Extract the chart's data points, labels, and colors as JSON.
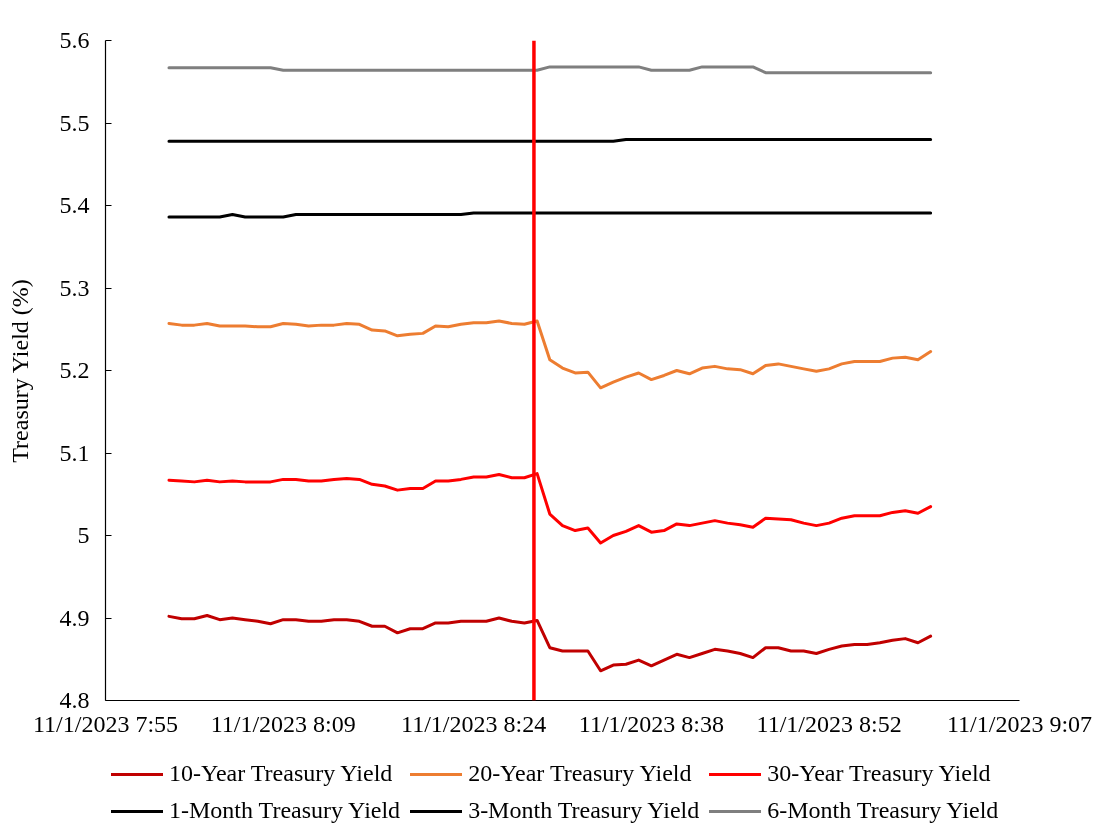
{
  "chart_data": {
    "type": "line",
    "ylabel": "Treasury Yield (%)",
    "x": [
      "2023-11-01T08:00",
      "2023-11-01T08:01",
      "2023-11-01T08:02",
      "2023-11-01T08:03",
      "2023-11-01T08:04",
      "2023-11-01T08:05",
      "2023-11-01T08:06",
      "2023-11-01T08:07",
      "2023-11-01T08:08",
      "2023-11-01T08:09",
      "2023-11-01T08:10",
      "2023-11-01T08:11",
      "2023-11-01T08:12",
      "2023-11-01T08:13",
      "2023-11-01T08:14",
      "2023-11-01T08:15",
      "2023-11-01T08:16",
      "2023-11-01T08:17",
      "2023-11-01T08:18",
      "2023-11-01T08:19",
      "2023-11-01T08:20",
      "2023-11-01T08:21",
      "2023-11-01T08:22",
      "2023-11-01T08:23",
      "2023-11-01T08:24",
      "2023-11-01T08:25",
      "2023-11-01T08:26",
      "2023-11-01T08:27",
      "2023-11-01T08:28",
      "2023-11-01T08:29",
      "2023-11-01T08:30",
      "2023-11-01T08:31",
      "2023-11-01T08:32",
      "2023-11-01T08:33",
      "2023-11-01T08:34",
      "2023-11-01T08:35",
      "2023-11-01T08:36",
      "2023-11-01T08:37",
      "2023-11-01T08:38",
      "2023-11-01T08:39",
      "2023-11-01T08:40",
      "2023-11-01T08:41",
      "2023-11-01T08:42",
      "2023-11-01T08:43",
      "2023-11-01T08:44",
      "2023-11-01T08:45",
      "2023-11-01T08:46",
      "2023-11-01T08:47",
      "2023-11-01T08:48",
      "2023-11-01T08:49",
      "2023-11-01T08:50",
      "2023-11-01T08:51",
      "2023-11-01T08:52",
      "2023-11-01T08:53",
      "2023-11-01T08:54",
      "2023-11-01T08:55",
      "2023-11-01T08:56",
      "2023-11-01T08:57",
      "2023-11-01T08:58",
      "2023-11-01T08:59",
      "2023-11-01T09:00"
    ],
    "xlim": [
      "2023-11-01T07:55",
      "2023-11-01T09:07"
    ],
    "xticks": [
      {
        "value": "2023-11-01T07:55",
        "label": "11/1/2023 7:55"
      },
      {
        "value": "2023-11-01T08:09",
        "label": "11/1/2023 8:09"
      },
      {
        "value": "2023-11-01T08:24",
        "label": "11/1/2023 8:24"
      },
      {
        "value": "2023-11-01T08:38",
        "label": "11/1/2023 8:38"
      },
      {
        "value": "2023-11-01T08:52",
        "label": "11/1/2023 8:52"
      },
      {
        "value": "2023-11-01T09:07",
        "label": "11/1/2023 9:07"
      }
    ],
    "ylim": [
      4.8,
      5.6
    ],
    "yticks": [
      4.8,
      4.9,
      5,
      5.1,
      5.2,
      5.3,
      5.4,
      5.5,
      5.6
    ],
    "legend": "bottom",
    "ref_lines": [
      {
        "axis": "x",
        "value": "2023-11-01T08:28:45",
        "color": "#ff0000"
      }
    ],
    "series": [
      {
        "name": "10-Year Treasury Yield",
        "color": "#c00000",
        "values": [
          4.902,
          4.899,
          4.899,
          4.903,
          4.898,
          4.9,
          4.898,
          4.896,
          4.893,
          4.898,
          4.898,
          4.896,
          4.896,
          4.898,
          4.898,
          4.896,
          4.89,
          4.89,
          4.882,
          4.887,
          4.887,
          4.894,
          4.894,
          4.896,
          4.896,
          4.896,
          4.9,
          4.896,
          4.894,
          4.897,
          4.864,
          4.86,
          4.86,
          4.86,
          4.836,
          4.843,
          4.844,
          4.849,
          4.842,
          4.849,
          4.856,
          4.852,
          4.857,
          4.862,
          4.86,
          4.857,
          4.852,
          4.864,
          4.864,
          4.86,
          4.86,
          4.857,
          4.862,
          4.866,
          4.868,
          4.868,
          4.87,
          4.873,
          4.875,
          4.87,
          4.878
        ]
      },
      {
        "name": "20-Year Treasury Yield",
        "color": "#ed7d31",
        "values": [
          5.257,
          5.255,
          5.255,
          5.257,
          5.254,
          5.254,
          5.254,
          5.253,
          5.253,
          5.257,
          5.256,
          5.254,
          5.255,
          5.255,
          5.257,
          5.256,
          5.249,
          5.248,
          5.242,
          5.244,
          5.245,
          5.254,
          5.253,
          5.256,
          5.258,
          5.258,
          5.26,
          5.257,
          5.256,
          5.26,
          5.213,
          5.203,
          5.197,
          5.198,
          5.179,
          5.186,
          5.192,
          5.197,
          5.189,
          5.194,
          5.2,
          5.196,
          5.203,
          5.205,
          5.202,
          5.201,
          5.196,
          5.206,
          5.208,
          5.205,
          5.202,
          5.199,
          5.202,
          5.208,
          5.211,
          5.211,
          5.211,
          5.215,
          5.216,
          5.213,
          5.223
        ]
      },
      {
        "name": "30-Year Treasury Yield",
        "color": "#ff0000",
        "values": [
          5.067,
          5.066,
          5.065,
          5.067,
          5.065,
          5.066,
          5.065,
          5.065,
          5.065,
          5.068,
          5.068,
          5.066,
          5.066,
          5.068,
          5.069,
          5.068,
          5.062,
          5.06,
          5.055,
          5.057,
          5.057,
          5.066,
          5.066,
          5.068,
          5.071,
          5.071,
          5.074,
          5.07,
          5.07,
          5.075,
          5.026,
          5.012,
          5.006,
          5.009,
          4.991,
          5,
          5.005,
          5.012,
          5.004,
          5.006,
          5.014,
          5.012,
          5.015,
          5.018,
          5.015,
          5.013,
          5.01,
          5.021,
          5.02,
          5.019,
          5.015,
          5.012,
          5.015,
          5.021,
          5.024,
          5.024,
          5.024,
          5.028,
          5.03,
          5.027,
          5.035
        ]
      },
      {
        "name": "1-Month Treasury Yield",
        "color": "#000000",
        "values": [
          5.386,
          5.386,
          5.386,
          5.386,
          5.386,
          5.389,
          5.386,
          5.386,
          5.386,
          5.386,
          5.389,
          5.389,
          5.389,
          5.389,
          5.389,
          5.389,
          5.389,
          5.389,
          5.389,
          5.389,
          5.389,
          5.389,
          5.389,
          5.389,
          5.391,
          5.391,
          5.391,
          5.391,
          5.391,
          5.391,
          5.391,
          5.391,
          5.391,
          5.391,
          5.391,
          5.391,
          5.391,
          5.391,
          5.391,
          5.391,
          5.391,
          5.391,
          5.391,
          5.391,
          5.391,
          5.391,
          5.391,
          5.391,
          5.391,
          5.391,
          5.391,
          5.391,
          5.391,
          5.391,
          5.391,
          5.391,
          5.391,
          5.391,
          5.391,
          5.391,
          5.391
        ]
      },
      {
        "name": "3-Month Treasury Yield",
        "color": "#000000",
        "values": [
          5.478,
          5.478,
          5.478,
          5.478,
          5.478,
          5.478,
          5.478,
          5.478,
          5.478,
          5.478,
          5.478,
          5.478,
          5.478,
          5.478,
          5.478,
          5.478,
          5.478,
          5.478,
          5.478,
          5.478,
          5.478,
          5.478,
          5.478,
          5.478,
          5.478,
          5.478,
          5.478,
          5.478,
          5.478,
          5.478,
          5.478,
          5.478,
          5.478,
          5.478,
          5.478,
          5.478,
          5.48,
          5.48,
          5.48,
          5.48,
          5.48,
          5.48,
          5.48,
          5.48,
          5.48,
          5.48,
          5.48,
          5.48,
          5.48,
          5.48,
          5.48,
          5.48,
          5.48,
          5.48,
          5.48,
          5.48,
          5.48,
          5.48,
          5.48,
          5.48,
          5.48
        ]
      },
      {
        "name": "6-Month Treasury Yield",
        "color": "#7f7f7f",
        "values": [
          5.567,
          5.567,
          5.567,
          5.567,
          5.567,
          5.567,
          5.567,
          5.567,
          5.567,
          5.564,
          5.564,
          5.564,
          5.564,
          5.564,
          5.564,
          5.564,
          5.564,
          5.564,
          5.564,
          5.564,
          5.564,
          5.564,
          5.564,
          5.564,
          5.564,
          5.564,
          5.564,
          5.564,
          5.564,
          5.564,
          5.568,
          5.568,
          5.568,
          5.568,
          5.568,
          5.568,
          5.568,
          5.568,
          5.564,
          5.564,
          5.564,
          5.564,
          5.568,
          5.568,
          5.568,
          5.568,
          5.568,
          5.561,
          5.561,
          5.561,
          5.561,
          5.561,
          5.561,
          5.561,
          5.561,
          5.561,
          5.561,
          5.561,
          5.561,
          5.561,
          5.561
        ]
      }
    ]
  }
}
